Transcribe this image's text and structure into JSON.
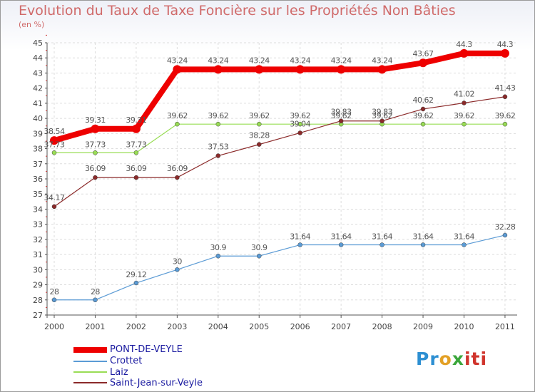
{
  "chart_data": {
    "type": "line",
    "title": "Evolution du Taux de Taxe Foncière sur les Propriétés Non Bâties",
    "ylabel": "(en %)",
    "xlabel": "",
    "ylim": [
      27,
      45
    ],
    "yticks": [
      "27",
      "28",
      "29",
      "30",
      "31",
      "32",
      "33",
      "34",
      "35",
      "36",
      "37",
      "38",
      "39",
      "40",
      "41",
      "42",
      "43",
      "44",
      "45"
    ],
    "categories": [
      "2000",
      "2001",
      "2002",
      "2003",
      "2004",
      "2005",
      "2006",
      "2007",
      "2008",
      "2009",
      "2010",
      "2011"
    ],
    "series": [
      {
        "name": "PONT-DE-VEYLE",
        "color": "#ee0000",
        "values": [
          38.54,
          39.31,
          39.31,
          43.24,
          43.24,
          43.24,
          43.24,
          43.24,
          43.24,
          43.67,
          44.3,
          44.3
        ],
        "labels": [
          "38.54",
          "39.31",
          "39.31",
          "43.24",
          "43.24",
          "43.24",
          "43.24",
          "43.24",
          "43.24",
          "43.67",
          "44.3",
          "44.3"
        ]
      },
      {
        "name": "Crottet",
        "color": "#5b9bd5",
        "values": [
          28,
          28,
          29.12,
          30,
          30.9,
          30.9,
          31.64,
          31.64,
          31.64,
          31.64,
          31.64,
          32.28
        ],
        "labels": [
          "28",
          "28",
          "29.12",
          "30",
          "30.9",
          "30.9",
          "31.64",
          "31.64",
          "31.64",
          "31.64",
          "31.64",
          "32.28"
        ]
      },
      {
        "name": "Laiz",
        "color": "#99dd55",
        "values": [
          37.73,
          37.73,
          37.73,
          39.62,
          39.62,
          39.62,
          39.62,
          39.62,
          39.62,
          39.62,
          39.62,
          39.62
        ],
        "labels": [
          "37.73",
          "37.73",
          "37.73",
          "39.62",
          "39.62",
          "39.62",
          "39.62",
          "39.62",
          "39.62",
          "39.62",
          "39.62",
          "39.62"
        ]
      },
      {
        "name": "Saint-Jean-sur-Veyle",
        "color": "#8b2a2a",
        "values": [
          34.17,
          36.09,
          36.09,
          36.09,
          37.53,
          38.28,
          39.04,
          39.83,
          39.83,
          40.62,
          41.02,
          41.43
        ],
        "labels": [
          "34.17",
          "36.09",
          "36.09",
          "36.09",
          "37.53",
          "38.28",
          "39.04",
          "39.83",
          "39.83",
          "40.62",
          "41.02",
          "41.43"
        ]
      }
    ]
  },
  "brand": {
    "p1": "Pr",
    "p2": "o",
    "p3": "x",
    "p4": "iti"
  }
}
